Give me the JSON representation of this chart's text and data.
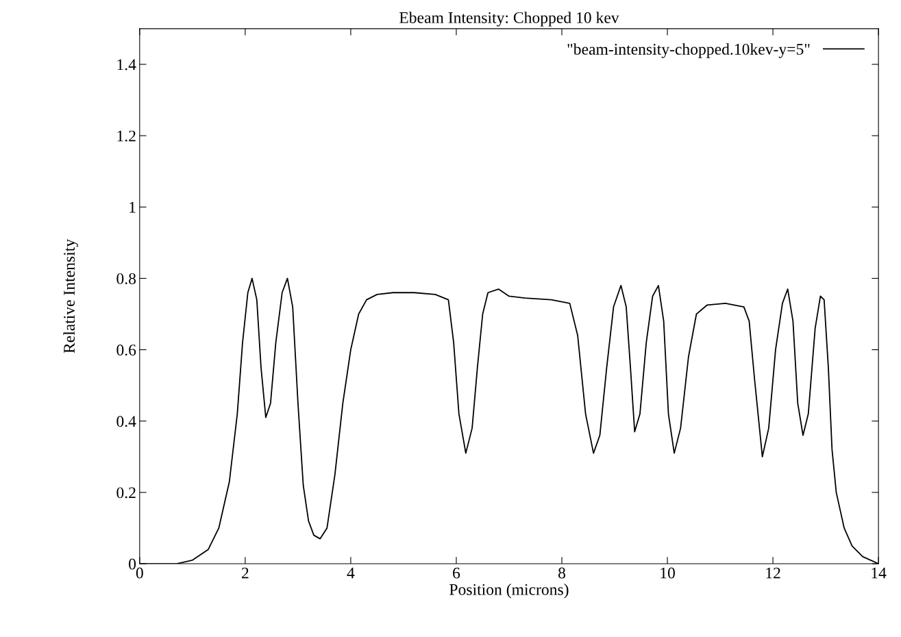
{
  "chart_data": {
    "type": "line",
    "title": "Ebeam Intensity: Chopped 10 kev",
    "xlabel": "Position (microns)",
    "ylabel": "Relative Intensity",
    "xlim": [
      0,
      14
    ],
    "ylim": [
      0,
      1.5
    ],
    "xticks": [
      0,
      2,
      4,
      6,
      8,
      10,
      12,
      14
    ],
    "yticks": [
      0,
      {
        "value": 0.2,
        "label": "0.2"
      },
      {
        "value": 0.4,
        "label": "0.4"
      },
      {
        "value": 0.6,
        "label": "0.6"
      },
      {
        "value": 0.8,
        "label": "0.8"
      },
      1,
      {
        "value": 1.2,
        "label": "1.2"
      },
      {
        "value": 1.4,
        "label": "1.4"
      }
    ],
    "grid": false,
    "legend": "top right",
    "marker": "none",
    "line_style": "solid",
    "series": [
      {
        "name": "\"beam-intensity-chopped.10kev-y=5\"",
        "color": "#000000",
        "x": [
          0,
          0.7,
          1.0,
          1.3,
          1.5,
          1.7,
          1.85,
          1.95,
          2.05,
          2.13,
          2.22,
          2.3,
          2.39,
          2.48,
          2.58,
          2.7,
          2.8,
          2.9,
          3.0,
          3.1,
          3.2,
          3.3,
          3.42,
          3.55,
          3.7,
          3.85,
          4.0,
          4.15,
          4.3,
          4.5,
          4.8,
          5.2,
          5.6,
          5.85,
          5.95,
          6.05,
          6.18,
          6.3,
          6.4,
          6.5,
          6.6,
          6.8,
          7.0,
          7.3,
          7.8,
          8.15,
          8.3,
          8.45,
          8.6,
          8.72,
          8.85,
          8.98,
          9.12,
          9.22,
          9.3,
          9.38,
          9.48,
          9.6,
          9.72,
          9.83,
          9.93,
          10.02,
          10.13,
          10.25,
          10.4,
          10.55,
          10.75,
          11.1,
          11.45,
          11.55,
          11.65,
          11.8,
          11.92,
          12.05,
          12.18,
          12.28,
          12.38,
          12.47,
          12.57,
          12.67,
          12.8,
          12.9,
          12.97,
          13.05,
          13.12,
          13.2,
          13.35,
          13.5,
          13.7,
          14.0
        ],
        "values": [
          0,
          0,
          0.01,
          0.04,
          0.1,
          0.23,
          0.42,
          0.62,
          0.76,
          0.8,
          0.74,
          0.55,
          0.41,
          0.45,
          0.62,
          0.76,
          0.8,
          0.72,
          0.45,
          0.22,
          0.12,
          0.08,
          0.07,
          0.1,
          0.25,
          0.45,
          0.6,
          0.7,
          0.74,
          0.755,
          0.76,
          0.76,
          0.755,
          0.74,
          0.62,
          0.42,
          0.31,
          0.38,
          0.55,
          0.7,
          0.76,
          0.77,
          0.75,
          0.745,
          0.74,
          0.73,
          0.64,
          0.42,
          0.31,
          0.36,
          0.55,
          0.72,
          0.78,
          0.72,
          0.55,
          0.37,
          0.42,
          0.62,
          0.75,
          0.78,
          0.68,
          0.42,
          0.31,
          0.38,
          0.58,
          0.7,
          0.725,
          0.73,
          0.72,
          0.68,
          0.52,
          0.3,
          0.38,
          0.6,
          0.73,
          0.77,
          0.68,
          0.45,
          0.36,
          0.42,
          0.66,
          0.75,
          0.74,
          0.55,
          0.32,
          0.2,
          0.1,
          0.05,
          0.02,
          0
        ]
      }
    ]
  }
}
